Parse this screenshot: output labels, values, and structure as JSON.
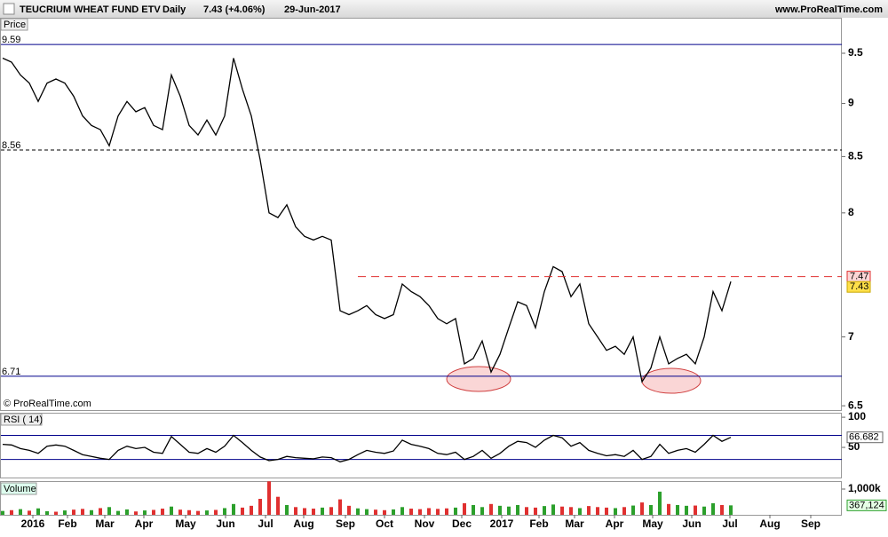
{
  "header": {
    "title": "TEUCRIUM WHEAT FUND ETV",
    "period": "Daily",
    "quote": "7.43 (+4.06%)",
    "date": "29-Jun-2017",
    "site": "www.ProRealTime.com",
    "copyright": "© ProRealTime.com"
  },
  "chart_data": [
    {
      "type": "line",
      "title": "Price",
      "log_scale": true,
      "x": [
        0,
        1,
        2,
        3,
        4,
        5,
        6,
        7,
        8,
        9,
        10,
        11,
        12,
        13,
        14,
        15,
        16,
        17,
        18,
        19,
        20,
        21,
        22,
        23,
        24,
        25,
        26,
        27,
        28,
        29,
        30,
        31,
        32,
        33,
        34,
        35,
        36,
        37,
        38,
        39,
        40,
        41,
        42,
        43,
        44,
        45,
        46,
        47,
        48,
        49,
        50,
        51,
        52,
        53,
        54,
        55,
        56,
        57,
        58,
        59,
        60,
        61,
        62,
        63,
        64,
        65,
        66,
        67,
        68,
        69,
        70,
        71,
        72,
        73,
        74,
        75,
        76,
        77,
        78,
        79,
        80,
        81,
        82
      ],
      "xlim": [
        -0.3,
        94.5
      ],
      "xticks": [
        {
          "value": 3.4,
          "label": "2016"
        },
        {
          "value": 7.3,
          "label": "Feb"
        },
        {
          "value": 11.5,
          "label": "Mar"
        },
        {
          "value": 15.9,
          "label": "Apr"
        },
        {
          "value": 20.6,
          "label": "May"
        },
        {
          "value": 25.1,
          "label": "Jun"
        },
        {
          "value": 29.6,
          "label": "Jul"
        },
        {
          "value": 33.9,
          "label": "Aug"
        },
        {
          "value": 38.6,
          "label": "Sep"
        },
        {
          "value": 43,
          "label": "Oct"
        },
        {
          "value": 47.5,
          "label": "Nov"
        },
        {
          "value": 51.7,
          "label": "Dec"
        },
        {
          "value": 56.2,
          "label": "2017"
        },
        {
          "value": 60.4,
          "label": "Feb"
        },
        {
          "value": 64.4,
          "label": "Mar"
        },
        {
          "value": 68.9,
          "label": "Apr"
        },
        {
          "value": 73.2,
          "label": "May"
        },
        {
          "value": 77.6,
          "label": "Jun"
        },
        {
          "value": 81.9,
          "label": "Jul"
        },
        {
          "value": 86.4,
          "label": "Aug"
        },
        {
          "value": 91,
          "label": "Sep"
        }
      ],
      "series": [
        {
          "color": "#000000",
          "values": [
            9.45,
            9.41,
            9.28,
            9.2,
            9.02,
            9.2,
            9.24,
            9.2,
            9.07,
            8.88,
            8.79,
            8.75,
            8.6,
            8.88,
            9.02,
            8.92,
            8.96,
            8.79,
            8.75,
            9.28,
            9.07,
            8.79,
            8.7,
            8.84,
            8.7,
            8.88,
            9.45,
            9.14,
            8.88,
            8.47,
            8.0,
            7.96,
            8.07,
            7.88,
            7.8,
            7.77,
            7.8,
            7.77,
            7.2,
            7.17,
            7.2,
            7.24,
            7.17,
            7.14,
            7.17,
            7.41,
            7.35,
            7.31,
            7.24,
            7.14,
            7.1,
            7.14,
            6.8,
            6.84,
            6.97,
            6.74,
            6.87,
            7.07,
            7.27,
            7.24,
            7.07,
            7.35,
            7.55,
            7.51,
            7.31,
            7.41,
            7.1,
            7.0,
            6.9,
            6.93,
            6.87,
            7.0,
            6.67,
            6.77,
            7.0,
            6.8,
            6.84,
            6.87,
            6.8,
            7.0,
            7.35,
            7.2,
            7.43
          ]
        }
      ],
      "ylim": [
        6.47,
        9.87
      ],
      "yticks": [
        6.5,
        7,
        8,
        8.5,
        9,
        9.5
      ],
      "levels": [
        {
          "value": 9.59,
          "color": "#00008b",
          "dashed": false
        },
        {
          "value": 8.56,
          "color": "#000000",
          "dashed": true
        },
        {
          "value": 6.71,
          "color": "#00008b",
          "dashed": false
        }
      ],
      "resistance": 7.47,
      "last": 7.43
    },
    {
      "type": "line",
      "title": "RSI ( 14)",
      "series": [
        {
          "color": "#000000",
          "values": [
            55,
            54,
            48,
            45,
            40,
            52,
            54,
            52,
            45,
            38,
            35,
            32,
            30,
            45,
            52,
            48,
            50,
            42,
            40,
            68,
            55,
            42,
            40,
            48,
            42,
            52,
            70,
            58,
            45,
            34,
            28,
            30,
            35,
            33,
            32,
            31,
            34,
            33,
            26,
            30,
            38,
            45,
            42,
            40,
            44,
            62,
            55,
            52,
            48,
            40,
            38,
            42,
            30,
            35,
            45,
            32,
            40,
            52,
            60,
            58,
            50,
            62,
            70,
            66,
            52,
            58,
            45,
            40,
            36,
            38,
            35,
            45,
            30,
            35,
            55,
            40,
            45,
            48,
            42,
            55,
            70,
            60,
            66.682
          ]
        }
      ],
      "ylim": [
        0,
        106
      ],
      "yticks": [
        50,
        100
      ],
      "levels": [
        70,
        30
      ],
      "last": 66.682
    },
    {
      "type": "bar",
      "title": "Volume",
      "series": [
        {
          "values": [
            150000,
            180000,
            220000,
            160000,
            250000,
            140000,
            120000,
            170000,
            200000,
            230000,
            180000,
            260000,
            300000,
            150000,
            210000,
            130000,
            170000,
            190000,
            240000,
            320000,
            200000,
            180000,
            150000,
            170000,
            190000,
            260000,
            420000,
            280000,
            350000,
            620000,
            1300000,
            700000,
            380000,
            300000,
            260000,
            240000,
            280000,
            300000,
            600000,
            350000,
            250000,
            220000,
            200000,
            180000,
            210000,
            300000,
            240000,
            220000,
            260000,
            230000,
            250000,
            280000,
            450000,
            380000,
            300000,
            420000,
            350000,
            320000,
            380000,
            300000,
            280000,
            340000,
            400000,
            320000,
            300000,
            260000,
            340000,
            300000,
            280000,
            260000,
            300000,
            360000,
            480000,
            380000,
            900000,
            420000,
            380000,
            350000,
            360000,
            320000,
            450000,
            380000,
            367124
          ]
        }
      ],
      "colors": [
        "#2ca02c",
        "#e03030",
        "#2ca02c",
        "#e03030",
        "#2ca02c",
        "#2ca02c",
        "#e03030",
        "#2ca02c",
        "#e03030",
        "#e03030",
        "#2ca02c",
        "#e03030",
        "#2ca02c",
        "#2ca02c",
        "#2ca02c",
        "#e03030",
        "#2ca02c",
        "#e03030",
        "#e03030",
        "#2ca02c",
        "#e03030",
        "#e03030",
        "#e03030",
        "#2ca02c",
        "#e03030",
        "#2ca02c",
        "#2ca02c",
        "#e03030",
        "#e03030",
        "#e03030",
        "#e03030",
        "#e03030",
        "#2ca02c",
        "#e03030",
        "#e03030",
        "#e03030",
        "#2ca02c",
        "#e03030",
        "#e03030",
        "#e03030",
        "#2ca02c",
        "#2ca02c",
        "#e03030",
        "#e03030",
        "#2ca02c",
        "#2ca02c",
        "#e03030",
        "#e03030",
        "#e03030",
        "#e03030",
        "#e03030",
        "#2ca02c",
        "#e03030",
        "#2ca02c",
        "#2ca02c",
        "#e03030",
        "#2ca02c",
        "#2ca02c",
        "#2ca02c",
        "#e03030",
        "#e03030",
        "#2ca02c",
        "#2ca02c",
        "#e03030",
        "#e03030",
        "#2ca02c",
        "#e03030",
        "#e03030",
        "#e03030",
        "#2ca02c",
        "#e03030",
        "#2ca02c",
        "#e03030",
        "#2ca02c",
        "#2ca02c",
        "#e03030",
        "#2ca02c",
        "#2ca02c",
        "#e03030",
        "#2ca02c",
        "#2ca02c",
        "#e03030",
        "#2ca02c"
      ],
      "ylim": [
        0,
        1310000
      ],
      "yticks": [
        {
          "value": 1000000,
          "label": "1,000k"
        }
      ],
      "last": {
        "value": 367124,
        "label": "367,124"
      }
    }
  ]
}
